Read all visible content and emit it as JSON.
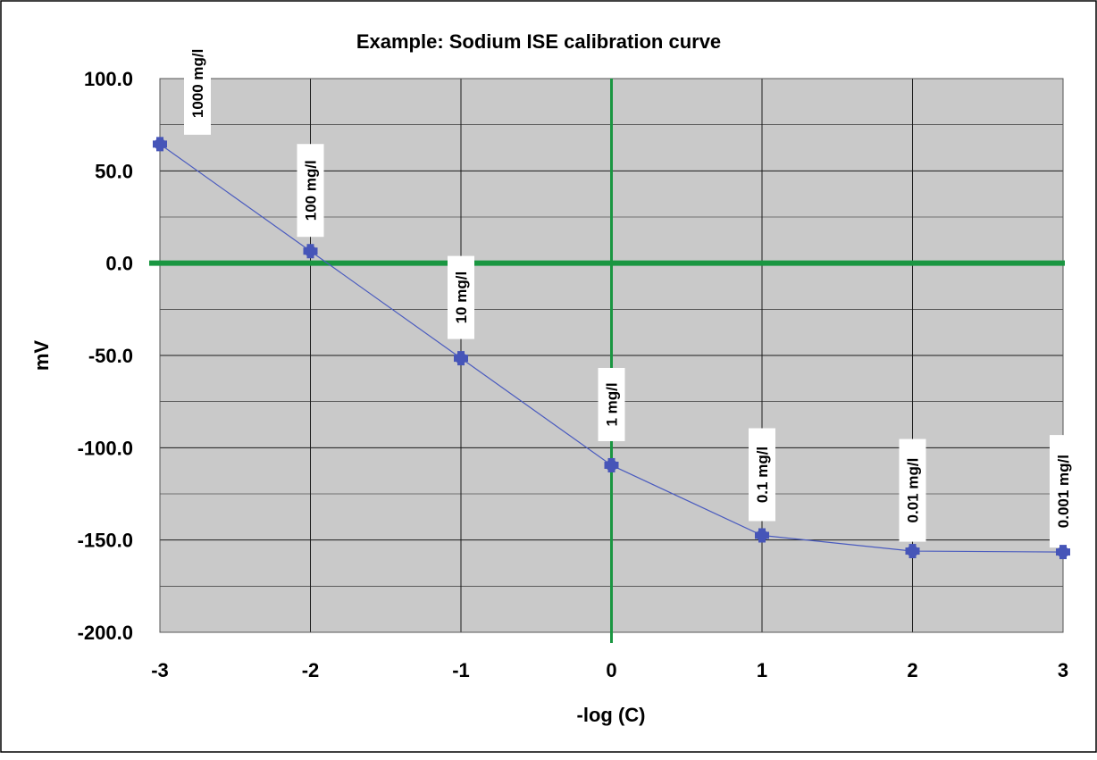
{
  "chart_data": {
    "type": "line",
    "title": "Example: Sodium ISE calibration curve",
    "xlabel": "-log (C)",
    "ylabel": "mV",
    "xlim": [
      -3,
      3
    ],
    "ylim": [
      -200,
      100
    ],
    "x_ticks": [
      -3,
      -2,
      -1,
      0,
      1,
      2,
      3
    ],
    "x_tick_labels": [
      "-3",
      "-2",
      "-1",
      "0",
      "1",
      "2",
      "3"
    ],
    "y_ticks": [
      -200,
      -150,
      -100,
      -50,
      0,
      50,
      100
    ],
    "y_tick_labels": [
      "-200.0",
      "-150.0",
      "-100.0",
      "-50.0",
      "0.0",
      "50.0",
      "100.0"
    ],
    "grid": true,
    "legend": "none",
    "series": [
      {
        "x": [
          -3,
          -2,
          -1,
          0,
          1,
          2,
          3
        ],
        "y": [
          64.5,
          6.5,
          -51.5,
          -109.5,
          -147.5,
          -156,
          -156.5
        ],
        "color": "#4a5bbf",
        "point_labels": [
          "1000 mg/l",
          "100 mg/l",
          "10 mg/l",
          "1 mg/l",
          "0.1 mg/l",
          "0.01 mg/l",
          "0.001 mg/l"
        ]
      }
    ],
    "reference_lines": [
      {
        "axis": "y",
        "value": 0,
        "color": "#1a9641"
      },
      {
        "axis": "x",
        "value": 0,
        "color": "#1a9641"
      }
    ],
    "colors": {
      "plot_background": "#c9c9c9",
      "grid": "#1a1a1a",
      "series_line": "#4a5bbf",
      "marker": "#4655b8",
      "reference": "#1a9641",
      "label_box": "#ffffff"
    }
  }
}
